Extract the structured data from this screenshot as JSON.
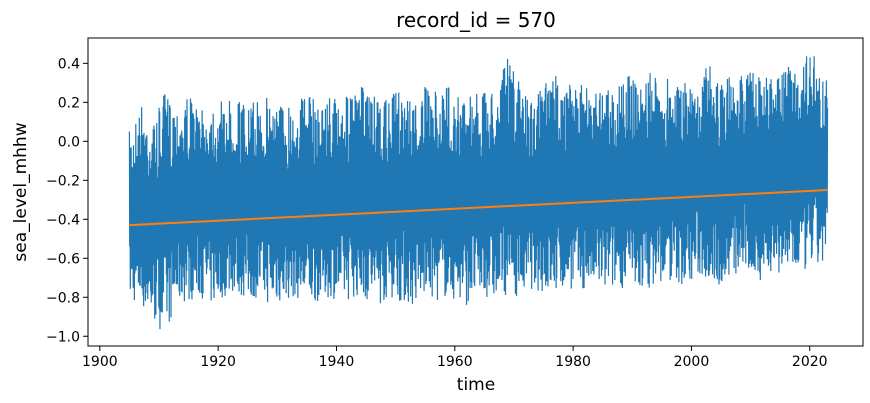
{
  "chart_data": {
    "type": "line",
    "title": "record_id = 570",
    "xlabel": "time",
    "ylabel": "sea_level_mhhw",
    "xlim": [
      1898,
      2029
    ],
    "ylim": [
      -1.05,
      0.53
    ],
    "xticks": [
      1900,
      1920,
      1940,
      1960,
      1980,
      2000,
      2020
    ],
    "yticks": [
      -1.0,
      -0.8,
      -0.6,
      -0.4,
      -0.2,
      0.0,
      0.2,
      0.4
    ],
    "grid": false,
    "colors": {
      "series": "#1f77b4",
      "trend": "#ff7f0e"
    },
    "series": [
      {
        "envelope": {
          "x": [
            1905,
            1907,
            1909,
            1911,
            1913,
            1915,
            1917,
            1919,
            1921,
            1923,
            1925,
            1927,
            1929,
            1931,
            1933,
            1935,
            1937,
            1939,
            1941,
            1943,
            1945,
            1947,
            1949,
            1951,
            1953,
            1955,
            1957,
            1959,
            1961,
            1963,
            1965,
            1967,
            1969,
            1971,
            1973,
            1975,
            1977,
            1979,
            1981,
            1983,
            1985,
            1987,
            1989,
            1991,
            1993,
            1995,
            1997,
            1999,
            2001,
            2003,
            2005,
            2007,
            2009,
            2011,
            2013,
            2015,
            2017,
            2019,
            2021,
            2023
          ],
          "y_max": [
            0.05,
            0.2,
            0.1,
            0.25,
            0.2,
            0.25,
            0.15,
            0.22,
            0.2,
            0.25,
            0.18,
            0.22,
            0.25,
            0.2,
            0.22,
            0.25,
            0.2,
            0.25,
            0.22,
            0.25,
            0.3,
            0.2,
            0.22,
            0.3,
            0.2,
            0.28,
            0.25,
            0.3,
            0.22,
            0.28,
            0.25,
            0.3,
            0.43,
            0.3,
            0.22,
            0.3,
            0.35,
            0.3,
            0.28,
            0.32,
            0.3,
            0.28,
            0.35,
            0.3,
            0.35,
            0.3,
            0.35,
            0.3,
            0.33,
            0.4,
            0.3,
            0.35,
            0.38,
            0.35,
            0.33,
            0.35,
            0.4,
            0.45,
            0.45,
            0.3
          ],
          "y_min": [
            -0.82,
            -0.85,
            -0.93,
            -0.99,
            -0.85,
            -0.82,
            -0.8,
            -0.85,
            -0.8,
            -0.78,
            -0.82,
            -0.8,
            -0.85,
            -0.83,
            -0.8,
            -0.85,
            -0.82,
            -0.8,
            -0.83,
            -0.8,
            -0.82,
            -0.85,
            -0.8,
            -0.83,
            -0.85,
            -0.8,
            -0.82,
            -0.8,
            -0.85,
            -0.83,
            -0.8,
            -0.82,
            -0.78,
            -0.8,
            -0.76,
            -0.78,
            -0.8,
            -0.75,
            -0.78,
            -0.75,
            -0.78,
            -0.76,
            -0.75,
            -0.78,
            -0.75,
            -0.73,
            -0.72,
            -0.75,
            -0.7,
            -0.72,
            -0.75,
            -0.7,
            -0.68,
            -0.72,
            -0.7,
            -0.68,
            -0.7,
            -0.68,
            -0.65,
            -0.65
          ]
        }
      },
      {
        "x": [
          1905,
          2023
        ],
        "y": [
          -0.43,
          -0.25
        ]
      }
    ]
  }
}
